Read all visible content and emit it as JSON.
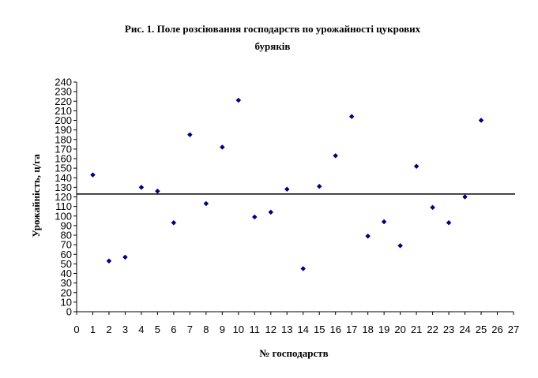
{
  "chart_data": {
    "type": "scatter",
    "title_lines": [
      "Рис. 1. Поле розсіювання господарств по урожайності цукрових",
      "буряків"
    ],
    "xlabel": "№ господарств",
    "ylabel": "Урожайність, ц/га",
    "xlim": [
      0,
      27
    ],
    "ylim": [
      0,
      240
    ],
    "x_ticks": [
      0,
      1,
      2,
      3,
      4,
      5,
      6,
      7,
      8,
      9,
      10,
      11,
      12,
      13,
      14,
      15,
      16,
      17,
      18,
      19,
      20,
      21,
      22,
      23,
      24,
      25,
      26,
      27
    ],
    "y_ticks": [
      0,
      10,
      20,
      30,
      40,
      50,
      60,
      70,
      80,
      90,
      100,
      110,
      120,
      130,
      140,
      150,
      160,
      170,
      180,
      190,
      200,
      210,
      220,
      230,
      240
    ],
    "grid": false,
    "legend": "none",
    "marker": "diamond",
    "marker_color": "#000080",
    "reference_line": {
      "y": 123,
      "color": "#000000"
    },
    "points": [
      {
        "x": 1,
        "y": 143
      },
      {
        "x": 2,
        "y": 53
      },
      {
        "x": 3,
        "y": 57
      },
      {
        "x": 4,
        "y": 130
      },
      {
        "x": 5,
        "y": 126
      },
      {
        "x": 6,
        "y": 93
      },
      {
        "x": 7,
        "y": 185
      },
      {
        "x": 8,
        "y": 113
      },
      {
        "x": 9,
        "y": 172
      },
      {
        "x": 10,
        "y": 221
      },
      {
        "x": 11,
        "y": 99
      },
      {
        "x": 12,
        "y": 104
      },
      {
        "x": 13,
        "y": 128
      },
      {
        "x": 14,
        "y": 45
      },
      {
        "x": 15,
        "y": 131
      },
      {
        "x": 16,
        "y": 163
      },
      {
        "x": 17,
        "y": 204
      },
      {
        "x": 18,
        "y": 79
      },
      {
        "x": 19,
        "y": 94
      },
      {
        "x": 20,
        "y": 69
      },
      {
        "x": 21,
        "y": 152
      },
      {
        "x": 22,
        "y": 109
      },
      {
        "x": 23,
        "y": 93
      },
      {
        "x": 24,
        "y": 120
      },
      {
        "x": 25,
        "y": 200
      }
    ]
  }
}
